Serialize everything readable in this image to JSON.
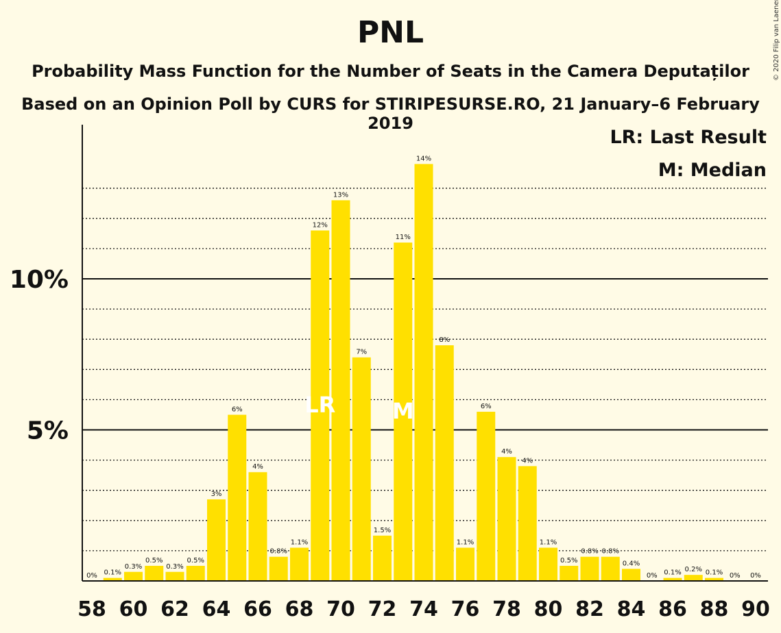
{
  "title": "PNL",
  "subtitle1": "Probability Mass Function for the Number of Seats in the Camera Deputaților",
  "subtitle2": "Based on an Opinion Poll by CURS for STIRIPESURSE.RO, 21 January–6 February 2019",
  "copyright": "© 2020 Filip van Laenen",
  "legend": {
    "last_result": "LR: Last Result",
    "median": "M: Median"
  },
  "colors": {
    "bar": "#FFE000",
    "background": "#FFFBE6",
    "marker_text": "#FFFFFF"
  },
  "chart_data": {
    "type": "bar",
    "categories": [
      58,
      59,
      60,
      61,
      62,
      63,
      64,
      65,
      66,
      67,
      68,
      69,
      70,
      71,
      72,
      73,
      74,
      75,
      76,
      77,
      78,
      79,
      80,
      81,
      82,
      83,
      84,
      85,
      86,
      87,
      88,
      89,
      90
    ],
    "values": [
      0,
      0.1,
      0.3,
      0.5,
      0.3,
      0.5,
      2.7,
      5.5,
      3.6,
      0.8,
      1.1,
      11.6,
      12.6,
      7.4,
      1.5,
      11.2,
      13.8,
      7.8,
      1.1,
      5.6,
      4.1,
      3.8,
      1.1,
      0.5,
      0.8,
      0.8,
      0.4,
      0,
      0.1,
      0.2,
      0.1,
      0,
      0
    ],
    "data_labels": [
      "0%",
      "0.1%",
      "0.3%",
      "0.5%",
      "0.3%",
      "0.5%",
      "3%",
      "6%",
      "4%",
      "0.8%",
      "1.1%",
      "12%",
      "13%",
      "7%",
      "1.5%",
      "11%",
      "14%",
      "8%",
      "1.1%",
      "6%",
      "4%",
      "4%",
      "1.1%",
      "0.5%",
      "0.8%",
      "0.8%",
      "0.4%",
      "0%",
      "0.1%",
      "0.2%",
      "0.1%",
      "0%",
      "0%"
    ],
    "x_tick_labels": [
      "58",
      "60",
      "62",
      "64",
      "66",
      "68",
      "70",
      "72",
      "74",
      "76",
      "78",
      "80",
      "82",
      "84",
      "86",
      "88",
      "90"
    ],
    "y_tick_labels": [
      {
        "value": 5,
        "label": "5%"
      },
      {
        "value": 10,
        "label": "10%"
      }
    ],
    "ylim": [
      0,
      15
    ],
    "minor_gridlines": [
      1,
      2,
      3,
      4,
      6,
      7,
      8,
      9,
      11,
      12,
      13
    ],
    "major_gridlines": [
      5,
      10
    ],
    "last_result": {
      "seat": 69,
      "label": "LR"
    },
    "median": {
      "seat": 73,
      "label": "M"
    },
    "legend_position": "top-right"
  }
}
